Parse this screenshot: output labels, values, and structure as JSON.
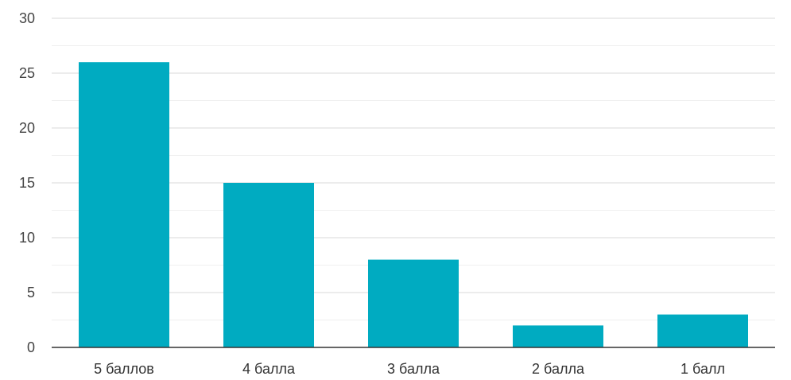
{
  "chart_data": {
    "type": "bar",
    "categories": [
      "5 баллов",
      "4 балла",
      "3 балла",
      "2 балла",
      "1 балл"
    ],
    "values": [
      26,
      15,
      8,
      2,
      3
    ],
    "ylim": [
      0,
      30
    ],
    "yticks": [
      "0",
      "5",
      "10",
      "15",
      "20",
      "25",
      "30"
    ],
    "grid": true,
    "legend": "none",
    "bar_color": "#00abc1",
    "grid_color": "#d9d9d9",
    "minor_grid_color": "#efefef",
    "axis_color": "#333333"
  }
}
